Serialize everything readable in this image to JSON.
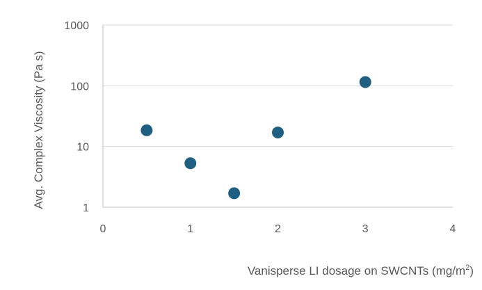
{
  "chart_data": {
    "type": "scatter",
    "xlabel": "Vanisperse LI dosage on SWCNTs (mg/m",
    "xlabel_superscript": "2",
    "xlabel_suffix": ")",
    "ylabel": "Avg. Complex Viscosity (Pa s)",
    "xlim": [
      0,
      4
    ],
    "ylim": [
      1,
      1000
    ],
    "y_scale": "log",
    "x_ticks": [
      "0",
      "1",
      "2",
      "3",
      "4"
    ],
    "y_ticks": [
      "1",
      "10",
      "100",
      "1000"
    ],
    "grid": "horizontal",
    "marker_color": "#1f5f82",
    "series": [
      {
        "points": [
          {
            "x": 0.5,
            "y": 18.5
          },
          {
            "x": 1.0,
            "y": 5.3
          },
          {
            "x": 1.5,
            "y": 1.7
          },
          {
            "x": 2.0,
            "y": 17.0
          },
          {
            "x": 3.0,
            "y": 115
          }
        ]
      }
    ]
  }
}
